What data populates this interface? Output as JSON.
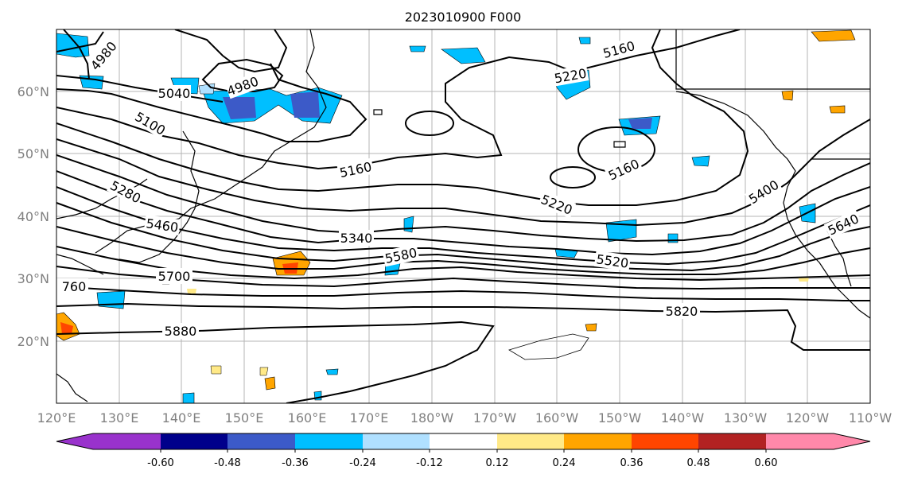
{
  "title": "2023010900 F000",
  "map": {
    "lat_labels": [
      "60°N",
      "50°N",
      "40°N",
      "30°N",
      "20°N"
    ],
    "lon_labels": [
      "120°E",
      "130°E",
      "140°E",
      "150°E",
      "160°E",
      "170°E",
      "180°W",
      "170°W",
      "160°W",
      "150°W",
      "140°W",
      "130°W",
      "120°W",
      "110°W"
    ],
    "contour_labels": [
      "4980",
      "4980",
      "5040",
      "5100",
      "5160",
      "5160",
      "5160",
      "5220",
      "5220",
      "5280",
      "5340",
      "5400",
      "5460",
      "5520",
      "5580",
      "5640",
      "5700",
      "760",
      "5820",
      "5880"
    ]
  },
  "colorbar": {
    "tick_labels": [
      "-0.60",
      "-0.48",
      "-0.36",
      "-0.24",
      "-0.12",
      "0.12",
      "0.24",
      "0.36",
      "0.48",
      "0.60"
    ],
    "colors": [
      "#9932cc",
      "#00008b",
      "#3c5ac8",
      "#00bfff",
      "#b0e0ff",
      "#ffffff",
      "#ffe987",
      "#ffa500",
      "#ff4500",
      "#b22222",
      "#ff88aa"
    ]
  }
}
